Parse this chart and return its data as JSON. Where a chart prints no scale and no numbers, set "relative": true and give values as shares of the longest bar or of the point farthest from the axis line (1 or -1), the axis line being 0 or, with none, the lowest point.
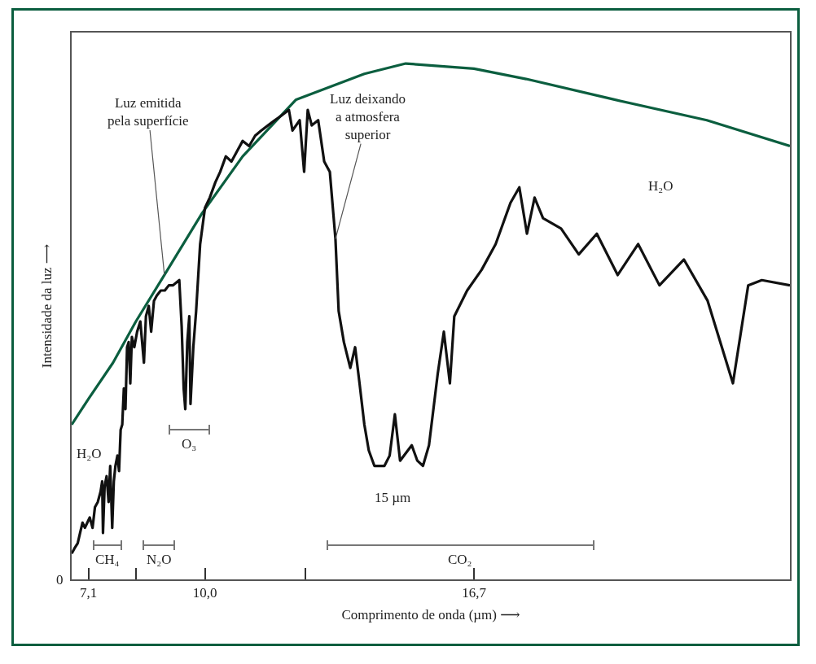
{
  "chart_data": {
    "type": "line",
    "relative": true,
    "xlabel": "Comprimento de onda (µm) ⟶",
    "ylabel": "Intensidade da luz ⟶",
    "xlim": [
      6.68,
      24.57
    ],
    "xticks": [
      {
        "value": 7.1,
        "label": "7,1"
      },
      {
        "value": 8.28,
        "label": null
      },
      {
        "value": 10.0,
        "label": "10,0"
      },
      {
        "value": 12.5,
        "label": null
      },
      {
        "value": 16.7,
        "label": "16,7"
      }
    ],
    "grid": false,
    "marker": "none",
    "line_style": "solid",
    "series": [
      {
        "color": "#0b5e3f",
        "x": [
          6.68,
          7.1,
          7.71,
          8.28,
          8.99,
          9.93,
          10.94,
          12.27,
          13.97,
          15.0,
          16.7,
          18.0,
          20.2,
          22.5,
          24.57
        ],
        "values": [
          0.3,
          0.35,
          0.42,
          0.5,
          0.59,
          0.71,
          0.82,
          0.93,
          0.98,
          1.0,
          0.99,
          0.97,
          0.93,
          0.89,
          0.84
        ]
      },
      {
        "color": "#111111",
        "x": [
          6.68,
          6.75,
          6.83,
          6.89,
          6.95,
          7.01,
          7.07,
          7.13,
          7.2,
          7.26,
          7.33,
          7.4,
          7.44,
          7.46,
          7.5,
          7.55,
          7.6,
          7.64,
          7.69,
          7.73,
          7.77,
          7.82,
          7.86,
          7.9,
          7.94,
          7.98,
          8.02,
          8.06,
          8.1,
          8.14,
          8.18,
          8.24,
          8.31,
          8.39,
          8.48,
          8.53,
          8.6,
          8.66,
          8.73,
          8.8,
          8.9,
          9.0,
          9.1,
          9.2,
          9.36,
          9.42,
          9.47,
          9.51,
          9.56,
          9.61,
          9.64,
          9.71,
          9.78,
          9.88,
          10.0,
          10.12,
          10.26,
          10.38,
          10.52,
          10.66,
          10.8,
          10.94,
          11.1,
          11.25,
          11.4,
          11.57,
          11.74,
          11.92,
          12.09,
          12.18,
          12.36,
          12.47,
          12.56,
          12.66,
          12.82,
          12.97,
          13.11,
          13.25,
          13.33,
          13.46,
          13.62,
          13.74,
          13.85,
          13.97,
          14.08,
          14.22,
          14.47,
          14.6,
          14.73,
          14.86,
          15.15,
          15.29,
          15.43,
          15.58,
          15.8,
          15.95,
          16.1,
          16.21,
          16.53,
          16.89,
          17.24,
          17.61,
          17.83,
          18.02,
          18.21,
          18.42,
          18.87,
          19.31,
          19.76,
          20.28,
          20.79,
          21.32,
          21.93,
          22.52,
          23.15,
          23.53,
          23.87,
          24.57
        ],
        "values": [
          0.05,
          0.06,
          0.07,
          0.09,
          0.11,
          0.1,
          0.11,
          0.12,
          0.1,
          0.14,
          0.15,
          0.17,
          0.19,
          0.09,
          0.18,
          0.2,
          0.15,
          0.22,
          0.1,
          0.19,
          0.22,
          0.24,
          0.21,
          0.29,
          0.3,
          0.37,
          0.33,
          0.45,
          0.46,
          0.38,
          0.47,
          0.45,
          0.48,
          0.5,
          0.42,
          0.51,
          0.53,
          0.48,
          0.54,
          0.55,
          0.56,
          0.56,
          0.57,
          0.57,
          0.58,
          0.49,
          0.37,
          0.33,
          0.46,
          0.51,
          0.34,
          0.45,
          0.52,
          0.65,
          0.72,
          0.74,
          0.77,
          0.79,
          0.82,
          0.81,
          0.83,
          0.85,
          0.84,
          0.86,
          0.87,
          0.88,
          0.89,
          0.9,
          0.91,
          0.87,
          0.89,
          0.79,
          0.91,
          0.88,
          0.89,
          0.81,
          0.79,
          0.66,
          0.52,
          0.46,
          0.41,
          0.45,
          0.38,
          0.3,
          0.25,
          0.22,
          0.22,
          0.24,
          0.32,
          0.23,
          0.26,
          0.23,
          0.22,
          0.26,
          0.4,
          0.48,
          0.38,
          0.51,
          0.56,
          0.6,
          0.65,
          0.73,
          0.76,
          0.67,
          0.74,
          0.7,
          0.68,
          0.63,
          0.67,
          0.59,
          0.65,
          0.57,
          0.62,
          0.54,
          0.38,
          0.57,
          0.58,
          0.57
        ]
      }
    ],
    "annotations": [
      "0",
      {
        "text": "Luz emitida\npela superfície",
        "x": 8.99,
        "y": 0.59
      },
      {
        "text": "Luz deixando\na atmosfera\nsuperior",
        "x": 13.25,
        "y": 0.66
      },
      "H₂O",
      "H₂O",
      "15 µm",
      "CH₄",
      "N₂O",
      "O₃",
      "CO₂"
    ]
  }
}
